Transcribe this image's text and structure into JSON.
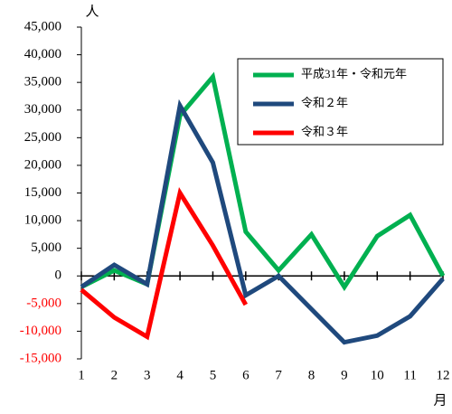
{
  "chart_data": {
    "type": "line",
    "y_axis_label": "人",
    "x_axis_label": "月",
    "categories": [
      "1",
      "2",
      "3",
      "4",
      "5",
      "6",
      "7",
      "8",
      "9",
      "10",
      "11",
      "12"
    ],
    "series": [
      {
        "name": "平成31年・令和元年",
        "color": "#00b050",
        "values": [
          -2000,
          1000,
          -1500,
          29000,
          36000,
          8000,
          1000,
          7500,
          -2000,
          7200,
          11000,
          0
        ]
      },
      {
        "name": "令和２年",
        "color": "#1f497d",
        "values": [
          -2000,
          2000,
          -1500,
          30800,
          20500,
          -3500,
          0,
          -6000,
          -12000,
          -10800,
          -7300,
          -500
        ]
      },
      {
        "name": "令和３年",
        "color": "#ff0000",
        "values": [
          -2500,
          -7500,
          -11000,
          15000,
          5500,
          -5200,
          null,
          null,
          null,
          null,
          null,
          null
        ]
      }
    ],
    "ylim": [
      -15000,
      45000
    ],
    "yticks": [
      {
        "value": -15000,
        "label": "-15,000"
      },
      {
        "value": -10000,
        "label": "-10,000"
      },
      {
        "value": -5000,
        "label": "-5,000"
      },
      0,
      {
        "value": 5000,
        "label": "5,000"
      },
      {
        "value": 10000,
        "label": "10,000"
      },
      {
        "value": 15000,
        "label": "15,000"
      },
      {
        "value": 20000,
        "label": "20,000"
      },
      {
        "value": 25000,
        "label": "25,000"
      },
      {
        "value": 30000,
        "label": "30,000"
      },
      {
        "value": 35000,
        "label": "35,000"
      },
      {
        "value": 40000,
        "label": "40,000"
      },
      {
        "value": 45000,
        "label": "45,000"
      }
    ],
    "grid": false,
    "legend": "upper right"
  }
}
